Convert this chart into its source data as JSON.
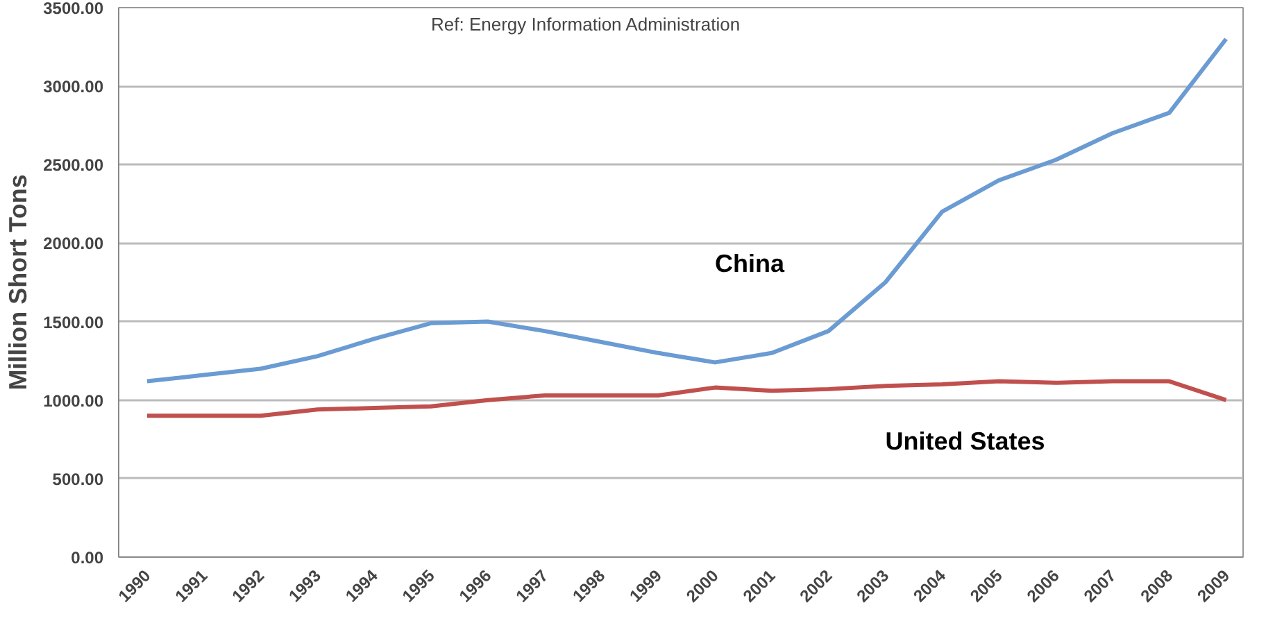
{
  "chart_data": {
    "type": "line",
    "ylabel": "Million Short Tons",
    "annotations": [
      "Ref: Energy Information Administration"
    ],
    "categories": [
      "1990",
      "1991",
      "1992",
      "1993",
      "1994",
      "1995",
      "1996",
      "1997",
      "1998",
      "1999",
      "2000",
      "2001",
      "2002",
      "2003",
      "2004",
      "2005",
      "2006",
      "2007",
      "2008",
      "2009"
    ],
    "series": [
      {
        "name": "China",
        "color": "#6a9bd3",
        "values": [
          1120,
          1160,
          1200,
          1280,
          1390,
          1490,
          1500,
          1440,
          1370,
          1300,
          1240,
          1300,
          1440,
          1750,
          2200,
          2400,
          2530,
          2700,
          2830,
          3300
        ]
      },
      {
        "name": "United States",
        "color": "#c0504d",
        "values": [
          900,
          900,
          900,
          940,
          950,
          960,
          1000,
          1030,
          1030,
          1030,
          1080,
          1060,
          1070,
          1090,
          1100,
          1120,
          1110,
          1120,
          1120,
          1000
        ]
      }
    ],
    "ylim": [
      0,
      3500
    ],
    "yticks": [
      {
        "value": 0,
        "label": "0.00"
      },
      {
        "value": 500,
        "label": "500.00"
      },
      {
        "value": 1000,
        "label": "1000.00"
      },
      {
        "value": 1500,
        "label": "1500.00"
      },
      {
        "value": 2000,
        "label": "2000.00"
      },
      {
        "value": 2500,
        "label": "2500.00"
      },
      {
        "value": 3000,
        "label": "3000.00"
      },
      {
        "value": 3500,
        "label": "3500.00"
      }
    ],
    "grid": "y",
    "marker": "none",
    "line_style": "solid"
  }
}
